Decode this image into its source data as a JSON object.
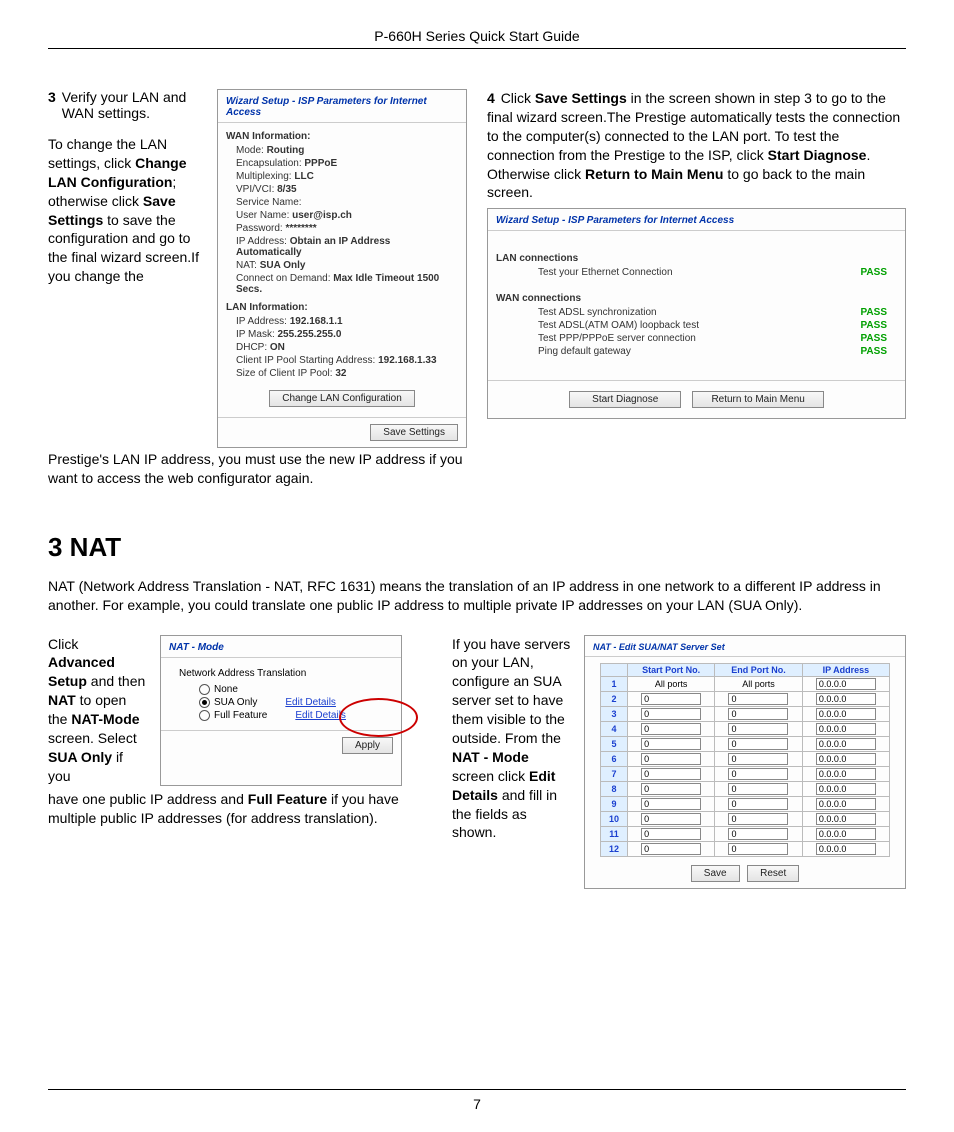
{
  "header_title": "P-660H Series Quick Start Guide",
  "page_number": "7",
  "step3": {
    "num": "3",
    "text_first": "Verify your LAN and WAN settings.",
    "para_1a": "To change the LAN settings, click ",
    "para_1b": "Change LAN Configuration",
    "para_1c": "; otherwise click ",
    "para_1d": "Save Settings ",
    "para_1e": "to save the configuration and go to the final wizard screen.If you change the",
    "continuation": "Prestige's LAN IP address, you must use the new IP address if you want to access the web configurator again."
  },
  "step4": {
    "num": "4",
    "a": "Click ",
    "b": "Save Settings ",
    "c": "in the screen shown in step 3 to go to the final wizard screen.The Prestige automatically tests the connection to the computer(s) connected to the LAN port. To test the connection from the Prestige to the ISP, click ",
    "d": "Start Diagnose",
    "e": ". Otherwise click ",
    "f": "Return to Main Menu ",
    "g": "to go back to the main screen."
  },
  "wiz1": {
    "title": "Wizard Setup - ISP Parameters for Internet Access",
    "wan_head": "WAN Information:",
    "wan": [
      {
        "k": "Mode: ",
        "v": "Routing"
      },
      {
        "k": "Encapsulation: ",
        "v": "PPPoE"
      },
      {
        "k": "Multiplexing: ",
        "v": "LLC"
      },
      {
        "k": "VPI/VCI: ",
        "v": "8/35"
      },
      {
        "k": "Service Name:",
        "v": ""
      },
      {
        "k": "User Name: ",
        "v": "user@isp.ch"
      },
      {
        "k": "Password: ",
        "v": "********"
      },
      {
        "k": "IP Address: ",
        "v": "Obtain an IP Address Automatically"
      },
      {
        "k": "NAT: ",
        "v": "SUA Only"
      },
      {
        "k": "Connect on Demand: ",
        "v": "Max Idle Timeout 1500 Secs."
      }
    ],
    "lan_head": "LAN Information:",
    "lan": [
      {
        "k": "IP Address: ",
        "v": "192.168.1.1"
      },
      {
        "k": "IP Mask: ",
        "v": "255.255.255.0"
      },
      {
        "k": "DHCP: ",
        "v": "ON"
      },
      {
        "k": "Client IP Pool Starting Address: ",
        "v": "192.168.1.33"
      },
      {
        "k": "Size of Client IP Pool: ",
        "v": "32"
      }
    ],
    "change_btn": "Change LAN Configuration",
    "save_btn": "Save Settings"
  },
  "wiz2": {
    "title": "Wizard Setup - ISP Parameters for Internet Access",
    "lan_head": "LAN connections",
    "lan_rows": [
      {
        "t": "Test your Ethernet Connection",
        "r": "PASS"
      }
    ],
    "wan_head": "WAN connections",
    "wan_rows": [
      {
        "t": "Test ADSL synchronization",
        "r": "PASS"
      },
      {
        "t": "Test ADSL(ATM OAM) loopback test",
        "r": "PASS"
      },
      {
        "t": "Test PPP/PPPoE server connection",
        "r": "PASS"
      },
      {
        "t": "Ping default gateway",
        "r": "PASS"
      }
    ],
    "diag_btn": "Start Diagnose",
    "return_btn": "Return to Main Menu"
  },
  "nat_heading": "3 NAT",
  "nat_para": "NAT (Network Address Translation - NAT, RFC 1631) means the translation of an IP address in one network to a different IP address in another. For example, you could translate one public IP address to multiple private IP addresses on your LAN (SUA Only).",
  "nat_left": {
    "a": "Click ",
    "b": "Advanced Setup ",
    "c": "and then ",
    "d": "NAT ",
    "e": "to open the ",
    "f": "NAT-Mode ",
    "g": "screen. Select ",
    "h": "SUA Only ",
    "i": "if you",
    "cont1": "have one public IP address and ",
    "cont2": "Full Feature ",
    "cont3": "if you have multiple public IP addresses (for address translation)."
  },
  "nat_panel": {
    "title": "NAT - Mode",
    "label": "Network Address Translation",
    "opt_none": "None",
    "opt_sua": "SUA Only",
    "opt_full": "Full Feature",
    "edit": "Edit Details",
    "apply": "Apply"
  },
  "nat_right": {
    "a": "If you have servers on your LAN, configure an SUA server set to have them visible to the outside. From the ",
    "b": "NAT - Mode ",
    "c": "screen click ",
    "d": "Edit Details ",
    "e": "and fill in the fields as shown."
  },
  "sua": {
    "title": "NAT - Edit SUA/NAT Server Set",
    "cols": [
      "",
      "Start Port No.",
      "End Port No.",
      "IP Address"
    ],
    "row1": {
      "sp": "All ports",
      "ep": "All ports",
      "ip": "0.0.0.0"
    },
    "rows_n": 12,
    "default_port": "0",
    "default_ip": "0.0.0.0",
    "save": "Save",
    "reset": "Reset"
  },
  "colors": {
    "link": "#1a3fcf",
    "pass": "#00a000",
    "circle": "#cc0000",
    "th_bg": "#dfefff"
  }
}
